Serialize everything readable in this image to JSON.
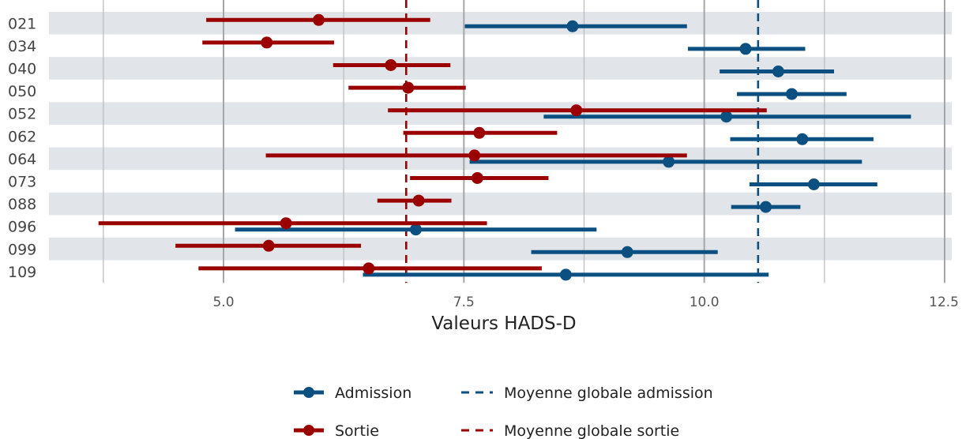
{
  "chart_data": {
    "type": "scatter",
    "title": "",
    "xlabel": "Valeurs HADS-D",
    "ylabel": "",
    "xlim": [
      3.1,
      12.55
    ],
    "xticks": [
      5.0,
      7.5,
      10.0,
      12.5
    ],
    "xtick_labels": [
      "5.0",
      "7.5",
      "10.0",
      "12.5"
    ],
    "categories": [
      "021",
      "034",
      "040",
      "050",
      "052",
      "062",
      "064",
      "073",
      "088",
      "096",
      "099",
      "109"
    ],
    "grid": true,
    "legend_position": "bottom",
    "colors": {
      "admission": "#0b5081",
      "sortie": "#9b0000",
      "band": "#e1e4e8",
      "grid": "#b0b0b0"
    },
    "series": [
      {
        "name": "Admission",
        "color": "#0b5081",
        "mean": [
          8.63,
          10.43,
          10.77,
          10.91,
          10.23,
          11.02,
          9.63,
          11.14,
          10.64,
          7.0,
          9.2,
          8.56
        ],
        "low": [
          7.51,
          9.83,
          10.16,
          10.34,
          8.33,
          10.27,
          7.56,
          10.47,
          10.28,
          5.12,
          8.2,
          6.45
        ],
        "high": [
          9.82,
          11.05,
          11.35,
          11.48,
          12.15,
          11.76,
          11.64,
          11.8,
          11.0,
          8.88,
          10.14,
          10.67
        ]
      },
      {
        "name": "Sortie",
        "color": "#9b0000",
        "mean": [
          5.99,
          5.45,
          6.74,
          6.92,
          8.67,
          7.66,
          7.61,
          7.64,
          7.03,
          5.65,
          5.47,
          6.51
        ],
        "low": [
          4.82,
          4.78,
          6.14,
          6.3,
          6.71,
          6.87,
          5.44,
          6.94,
          6.6,
          3.7,
          4.5,
          4.74
        ],
        "high": [
          7.15,
          6.15,
          7.36,
          7.52,
          10.65,
          8.47,
          9.82,
          8.38,
          7.37,
          7.74,
          6.43,
          8.31
        ]
      }
    ],
    "reference_lines": [
      {
        "name": "Moyenne globale admission",
        "value": 10.56,
        "color": "#0b5081"
      },
      {
        "name": "Moyenne globale sortie",
        "value": 6.9,
        "color": "#9b0000"
      }
    ]
  },
  "legend": {
    "admission_label": "Admission",
    "sortie_label": "Sortie",
    "mean_admission_label": "Moyenne globale admission",
    "mean_sortie_label": "Moyenne globale sortie"
  }
}
